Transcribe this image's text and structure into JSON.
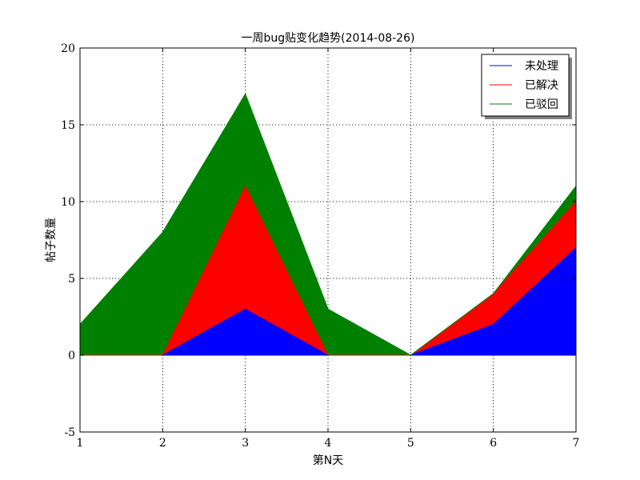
{
  "chart_data": {
    "type": "area",
    "stacked": true,
    "title": "一周bug贴变化趋势(2014-08-26)",
    "xlabel": "第N天",
    "ylabel": "帖子数量",
    "x": [
      1,
      2,
      3,
      4,
      5,
      6,
      7
    ],
    "series": [
      {
        "name": "未处理",
        "color": "#0000ff",
        "values": [
          0,
          0,
          3,
          0,
          0,
          2,
          7
        ]
      },
      {
        "name": "已解决",
        "color": "#ff0000",
        "values": [
          0,
          0,
          8,
          0,
          0,
          2,
          3
        ]
      },
      {
        "name": "已驳回",
        "color": "#008000",
        "values": [
          2,
          8,
          6,
          3,
          0,
          0,
          1
        ]
      }
    ],
    "xlim": [
      1,
      7
    ],
    "ylim": [
      -5,
      20
    ],
    "xticks": [
      1,
      2,
      3,
      4,
      5,
      6,
      7
    ],
    "yticks": [
      -5,
      0,
      5,
      10,
      15,
      20
    ],
    "grid": true,
    "legend_position": "top-right"
  }
}
